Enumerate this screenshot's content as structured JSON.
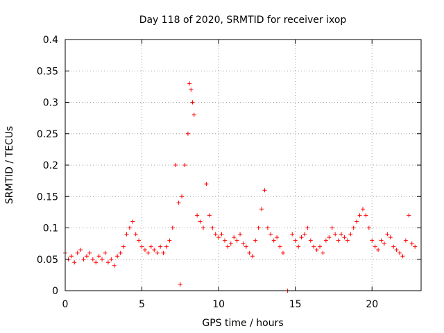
{
  "chart_data": {
    "type": "scatter",
    "title": "Day 118 of 2020, SRMTID for receiver ixop",
    "xlabel": "GPS time / hours",
    "ylabel": "SRMTID / TECUs",
    "xlim": [
      0,
      23.2
    ],
    "ylim": [
      0,
      0.4
    ],
    "xticks": [
      0,
      5,
      10,
      15,
      20
    ],
    "xtick_labels": [
      "0",
      "5",
      "10",
      "15",
      "20"
    ],
    "yticks": [
      0,
      0.05,
      0.1,
      0.15,
      0.2,
      0.25,
      0.3,
      0.35,
      0.4
    ],
    "ytick_labels": [
      "0",
      "0.05",
      "0.1",
      "0.15",
      "0.2",
      "0.25",
      "0.3",
      "0.35",
      "0.4"
    ],
    "grid": true,
    "marker": "+",
    "series": [
      {
        "name": "SRMTID",
        "color": "#ff0000",
        "x": [
          0.0,
          0.2,
          0.4,
          0.6,
          0.8,
          1.0,
          1.2,
          1.4,
          1.6,
          1.8,
          2.0,
          2.2,
          2.4,
          2.6,
          2.8,
          3.0,
          3.2,
          3.4,
          3.6,
          3.8,
          4.0,
          4.2,
          4.4,
          4.6,
          4.8,
          5.0,
          5.2,
          5.4,
          5.6,
          5.8,
          6.0,
          6.2,
          6.4,
          6.6,
          6.8,
          7.0,
          7.2,
          7.4,
          7.5,
          7.6,
          7.8,
          8.0,
          8.1,
          8.2,
          8.3,
          8.4,
          8.6,
          8.8,
          9.0,
          9.2,
          9.4,
          9.6,
          9.8,
          10.0,
          10.2,
          10.4,
          10.6,
          10.8,
          11.0,
          11.2,
          11.4,
          11.6,
          11.8,
          12.0,
          12.2,
          12.4,
          12.6,
          12.8,
          13.0,
          13.2,
          13.4,
          13.6,
          13.8,
          14.0,
          14.2,
          14.5,
          14.8,
          15.0,
          15.2,
          15.4,
          15.6,
          15.8,
          16.0,
          16.2,
          16.4,
          16.6,
          16.8,
          17.0,
          17.2,
          17.4,
          17.6,
          17.8,
          18.0,
          18.2,
          18.4,
          18.6,
          18.8,
          19.0,
          19.2,
          19.4,
          19.6,
          19.8,
          20.0,
          20.2,
          20.4,
          20.6,
          20.8,
          21.0,
          21.2,
          21.4,
          21.6,
          21.8,
          22.0,
          22.2,
          22.4,
          22.6,
          22.8
        ],
        "y": [
          0.06,
          0.05,
          0.055,
          0.045,
          0.06,
          0.065,
          0.05,
          0.055,
          0.06,
          0.05,
          0.045,
          0.055,
          0.05,
          0.06,
          0.045,
          0.05,
          0.04,
          0.055,
          0.06,
          0.07,
          0.09,
          0.1,
          0.11,
          0.09,
          0.08,
          0.07,
          0.065,
          0.06,
          0.07,
          0.065,
          0.06,
          0.07,
          0.06,
          0.07,
          0.08,
          0.1,
          0.2,
          0.14,
          0.01,
          0.15,
          0.2,
          0.25,
          0.33,
          0.32,
          0.3,
          0.28,
          0.12,
          0.11,
          0.1,
          0.17,
          0.12,
          0.1,
          0.09,
          0.085,
          0.09,
          0.08,
          0.07,
          0.075,
          0.085,
          0.08,
          0.09,
          0.075,
          0.07,
          0.06,
          0.055,
          0.08,
          0.1,
          0.13,
          0.16,
          0.1,
          0.09,
          0.08,
          0.085,
          0.07,
          0.06,
          0.0,
          0.09,
          0.08,
          0.07,
          0.085,
          0.09,
          0.1,
          0.08,
          0.07,
          0.065,
          0.07,
          0.06,
          0.08,
          0.085,
          0.1,
          0.09,
          0.08,
          0.09,
          0.085,
          0.08,
          0.09,
          0.1,
          0.11,
          0.12,
          0.13,
          0.12,
          0.1,
          0.08,
          0.07,
          0.065,
          0.08,
          0.075,
          0.09,
          0.085,
          0.07,
          0.065,
          0.06,
          0.055,
          0.08,
          0.12,
          0.075,
          0.07
        ]
      }
    ]
  }
}
